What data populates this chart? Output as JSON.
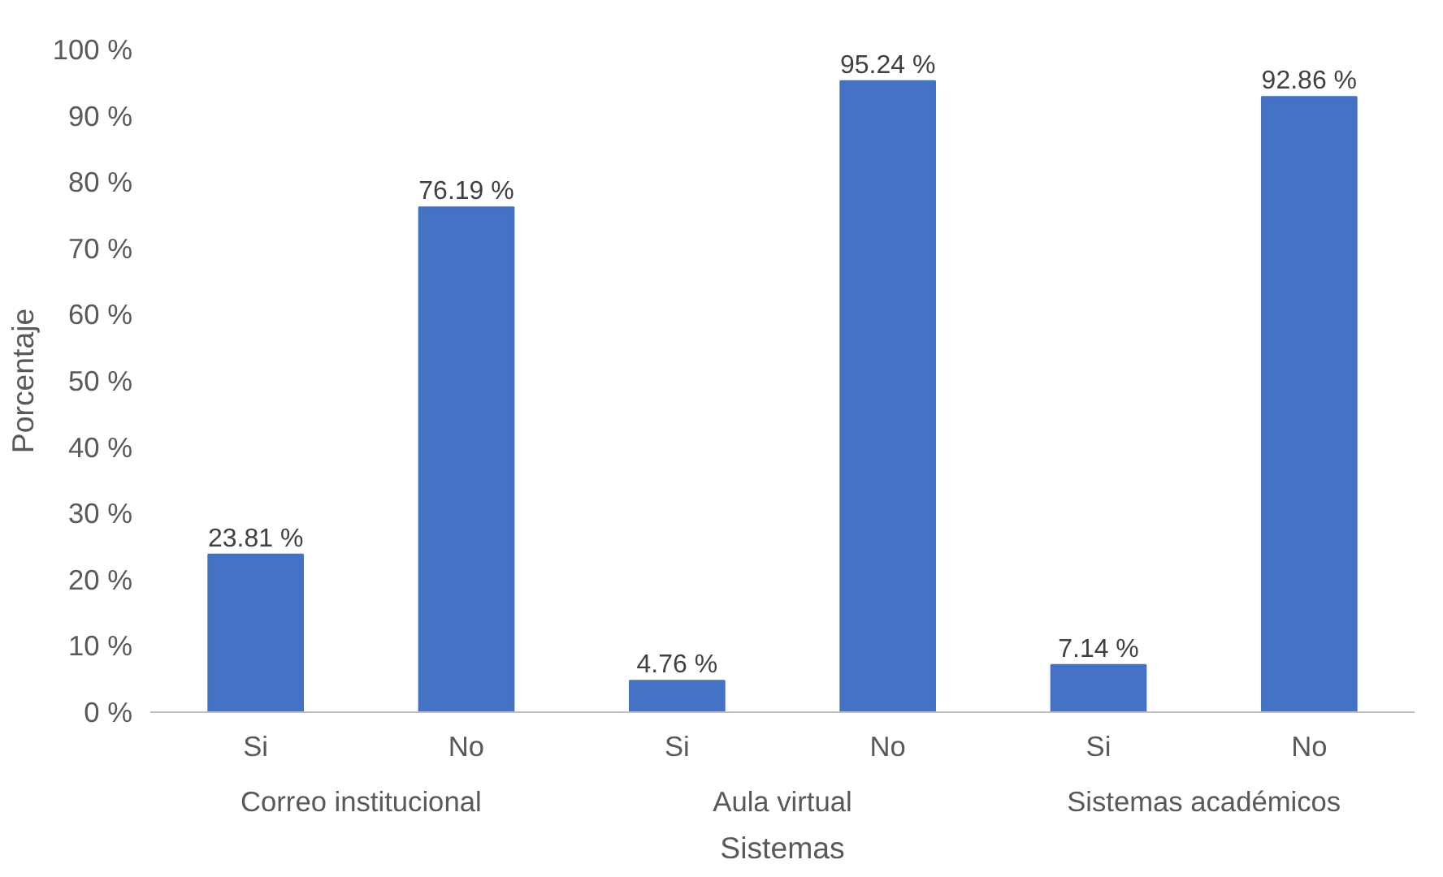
{
  "chart_data": {
    "type": "bar",
    "xlabel": "Sistemas",
    "ylabel": "Porcentaje",
    "categories": [
      "Si",
      "No",
      "Si",
      "No",
      "Si",
      "No"
    ],
    "annotations": [
      "Correo institucional",
      "Aula virtual",
      "Sistemas académicos"
    ],
    "values": [
      23.81,
      76.19,
      4.76,
      95.24,
      7.14,
      92.86
    ],
    "value_labels": [
      "23.81 %",
      "76.19 %",
      "4.76 %",
      "95.24 %",
      "7.14 %",
      "92.86 %"
    ],
    "color": "#4472c4",
    "ylim": [
      0,
      100
    ],
    "yticks": [
      {
        "value": 0,
        "label": "0 %"
      },
      {
        "value": 10,
        "label": "10 %"
      },
      {
        "value": 20,
        "label": "20 %"
      },
      {
        "value": 30,
        "label": "30 %"
      },
      {
        "value": 40,
        "label": "40 %"
      },
      {
        "value": 50,
        "label": "50 %"
      },
      {
        "value": 60,
        "label": "60 %"
      },
      {
        "value": 70,
        "label": "70 %"
      },
      {
        "value": 80,
        "label": "80 %"
      },
      {
        "value": 90,
        "label": "90 %"
      },
      {
        "value": 100,
        "label": "100 %"
      }
    ],
    "grid": false
  }
}
